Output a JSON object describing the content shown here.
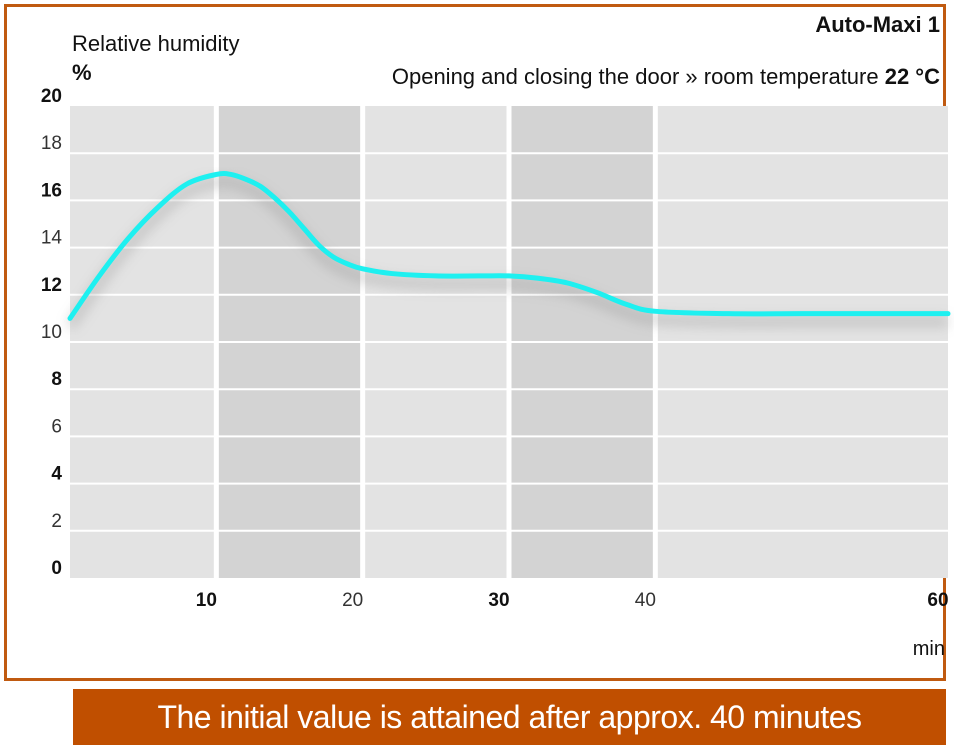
{
  "chart_data": {
    "type": "line",
    "title": "Auto-Maxi 1",
    "subtitle_prefix": "Opening and closing the door » room temperature ",
    "subtitle_value": "22 °C",
    "ylabel": "Relative humidity",
    "yunit": "%",
    "xlabel": "min",
    "xlim": [
      0,
      60
    ],
    "ylim": [
      0,
      20
    ],
    "xticks": [
      10,
      20,
      30,
      40,
      60
    ],
    "xticks_bold": [
      10,
      30,
      60
    ],
    "yticks": [
      0,
      2,
      4,
      6,
      8,
      10,
      12,
      14,
      16,
      18,
      20
    ],
    "yticks_bold": [
      0,
      4,
      8,
      12,
      16,
      20
    ],
    "band_edges": [
      0,
      10,
      20,
      30,
      40,
      60
    ],
    "series": [
      {
        "color": "#1ef0f0",
        "x": [
          0,
          2,
          4,
          6,
          8,
          10,
          11,
          12,
          13,
          14,
          15,
          16,
          17,
          18,
          19,
          20,
          22,
          25,
          28,
          30,
          32,
          34,
          36,
          38,
          40,
          45,
          50,
          55,
          60
        ],
        "y": [
          11.0,
          12.8,
          14.4,
          15.7,
          16.7,
          17.1,
          17.1,
          16.9,
          16.6,
          16.1,
          15.5,
          14.8,
          14.1,
          13.6,
          13.3,
          13.1,
          12.9,
          12.8,
          12.8,
          12.8,
          12.7,
          12.5,
          12.1,
          11.6,
          11.3,
          11.2,
          11.2,
          11.2,
          11.2
        ]
      }
    ]
  },
  "caption": "The initial value is attained after approx. 40 minutes"
}
